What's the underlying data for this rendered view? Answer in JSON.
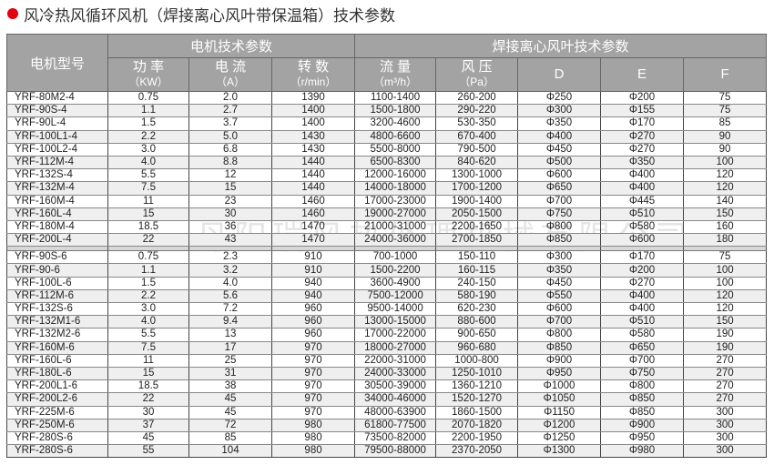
{
  "title": "风冷热风循环风机（焊接离心风叶带保温箱）技术参数",
  "accent_color": "#e00012",
  "watermark": "丹阳瑞风热处理机械有限公司",
  "header": {
    "model": "电机型号",
    "motor_group": "电机技术参数",
    "fan_group": "焊接离心风叶技术参数",
    "columns": [
      {
        "name": "功 率",
        "unit": "（KW）"
      },
      {
        "name": "电 流",
        "unit": "（A）"
      },
      {
        "name": "转 数",
        "unit": "（r/min）"
      },
      {
        "name": "流 量",
        "unit": "（m³/h）"
      },
      {
        "name": "风 压",
        "unit": "（Pa）"
      },
      {
        "name": "D",
        "unit": ""
      },
      {
        "name": "E",
        "unit": ""
      },
      {
        "name": "F",
        "unit": ""
      }
    ]
  },
  "groups": [
    [
      [
        "YRF-80M2-4",
        "0.75",
        "2.0",
        "1390",
        "1100-1400",
        "260-200",
        "Φ250",
        "Φ200",
        "75"
      ],
      [
        "YRF-90S-4",
        "1.1",
        "2.7",
        "1400",
        "1500-1800",
        "290-220",
        "Φ300",
        "Φ155",
        "75"
      ],
      [
        "YRF-90L-4",
        "1.5",
        "3.7",
        "1400",
        "3200-4600",
        "530-350",
        "Φ350",
        "Φ170",
        "85"
      ],
      [
        "YRF-100L1-4",
        "2.2",
        "5.0",
        "1430",
        "4800-6600",
        "670-400",
        "Φ400",
        "Φ270",
        "90"
      ],
      [
        "YRF-100L2-4",
        "3.0",
        "6.8",
        "1430",
        "5500-8000",
        "790-500",
        "Φ450",
        "Φ270",
        "90"
      ],
      [
        "YRF-112M-4",
        "4.0",
        "8.8",
        "1440",
        "6500-8300",
        "840-620",
        "Φ500",
        "Φ350",
        "100"
      ],
      [
        "YRF-132S-4",
        "5.5",
        "12",
        "1440",
        "12000-16000",
        "1300-1000",
        "Φ600",
        "Φ400",
        "120"
      ],
      [
        "YRF-132M-4",
        "7.5",
        "15",
        "1440",
        "14000-18000",
        "1700-1200",
        "Φ650",
        "Φ400",
        "120"
      ],
      [
        "YRF-160M-4",
        "11",
        "23",
        "1460",
        "17000-23000",
        "1900-1400",
        "Φ700",
        "Φ445",
        "140"
      ],
      [
        "YRF-160L-4",
        "15",
        "30",
        "1460",
        "19000-27000",
        "2050-1500",
        "Φ750",
        "Φ510",
        "150"
      ],
      [
        "YRF-180M-4",
        "18.5",
        "36",
        "1470",
        "21000-31000",
        "2200-1650",
        "Φ800",
        "Φ580",
        "160"
      ],
      [
        "YRF-200L-4",
        "22",
        "43",
        "1470",
        "24000-36000",
        "2700-1850",
        "Φ850",
        "Φ600",
        "180"
      ]
    ],
    [
      [
        "YRF-90S-6",
        "0.75",
        "2.3",
        "910",
        "700-1000",
        "150-110",
        "Φ300",
        "Φ170",
        "75"
      ],
      [
        "YRF-90-6",
        "1.1",
        "3.2",
        "910",
        "1500-2200",
        "160-115",
        "Φ350",
        "Φ200",
        "100"
      ],
      [
        "YRF-100L-6",
        "1.5",
        "4.0",
        "940",
        "3600-4900",
        "240-150",
        "Φ450",
        "Φ270",
        "100"
      ],
      [
        "YRF-112M-6",
        "2.2",
        "5.6",
        "940",
        "7500-12000",
        "580-190",
        "Φ550",
        "Φ400",
        "120"
      ],
      [
        "YRF-132S-6",
        "3.0",
        "7.2",
        "960",
        "9500-14000",
        "620-230",
        "Φ600",
        "Φ400",
        "120"
      ],
      [
        "YRF-132M1-6",
        "4.0",
        "9.4",
        "960",
        "13000-15000",
        "880-600",
        "Φ700",
        "Φ510",
        "150"
      ],
      [
        "YRF-132M2-6",
        "5.5",
        "13",
        "960",
        "17000-22000",
        "900-650",
        "Φ800",
        "Φ580",
        "190"
      ],
      [
        "YRF-160M-6",
        "7.5",
        "17",
        "970",
        "18000-27000",
        "960-680",
        "Φ850",
        "Φ650",
        "190"
      ],
      [
        "YRF-160L-6",
        "11",
        "25",
        "970",
        "22000-31000",
        "1000-800",
        "Φ900",
        "Φ700",
        "270"
      ],
      [
        "YRF-180L-6",
        "15",
        "31",
        "970",
        "24000-33000",
        "1250-1010",
        "Φ950",
        "Φ750",
        "270"
      ],
      [
        "YRF-200L1-6",
        "18.5",
        "38",
        "970",
        "30500-39000",
        "1360-1210",
        "Φ1000",
        "Φ800",
        "270"
      ],
      [
        "YRF-200L2-6",
        "22",
        "45",
        "970",
        "34000-46000",
        "1520-1270",
        "Φ1050",
        "Φ850",
        "270"
      ],
      [
        "YRF-225M-6",
        "30",
        "45",
        "970",
        "48000-63900",
        "1860-1500",
        "Φ1150",
        "Φ850",
        "300"
      ],
      [
        "YRF-250M-6",
        "37",
        "72",
        "980",
        "61800-77500",
        "2070-1820",
        "Φ1200",
        "Φ900",
        "300"
      ],
      [
        "YRF-280S-6",
        "45",
        "85",
        "980",
        "73500-82000",
        "2200-1950",
        "Φ1250",
        "Φ950",
        "300"
      ],
      [
        "YRF-280S-6",
        "55",
        "104",
        "980",
        "79500-88000",
        "2370-2050",
        "Φ1300",
        "Φ980",
        "300"
      ]
    ]
  ]
}
